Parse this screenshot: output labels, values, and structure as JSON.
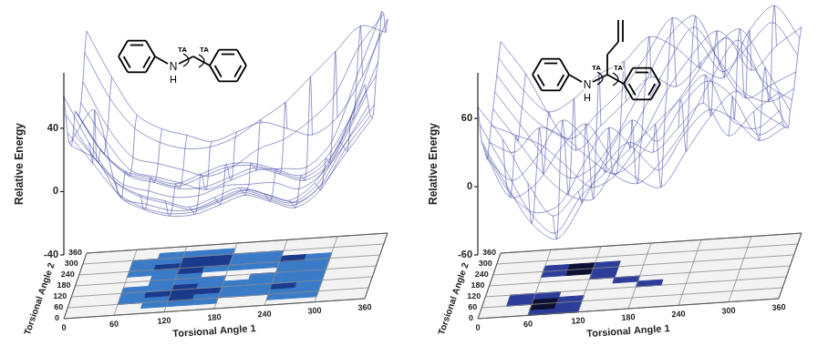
{
  "chart_data": [
    {
      "type": "surface",
      "x_label": "Torsional Angle 1",
      "y_label": "Torsional Angle 2",
      "z_label": "Relative Energy",
      "annotations": [
        "N",
        "H",
        "TA",
        "TA"
      ],
      "x": [
        0,
        30,
        60,
        90,
        120,
        150,
        180,
        210,
        240,
        270,
        300,
        330,
        360
      ],
      "y": [
        0,
        30,
        60,
        90,
        120,
        150,
        180,
        210,
        240,
        270,
        300,
        330,
        360
      ],
      "z": [
        [
          60,
          30,
          5,
          -5,
          -10,
          -15,
          -10,
          -5,
          -10,
          -15,
          -5,
          20,
          55
        ],
        [
          45,
          20,
          0,
          -10,
          -15,
          -20,
          -15,
          -10,
          -15,
          -20,
          -10,
          15,
          45
        ],
        [
          30,
          10,
          -10,
          -20,
          -25,
          -25,
          -20,
          -15,
          -20,
          -25,
          -15,
          10,
          35
        ],
        [
          20,
          40,
          -15,
          -25,
          -30,
          -30,
          -25,
          -20,
          -25,
          -30,
          -20,
          5,
          25
        ],
        [
          15,
          5,
          -20,
          -25,
          -30,
          -30,
          -25,
          -20,
          -25,
          -30,
          -20,
          0,
          20
        ],
        [
          20,
          0,
          -15,
          -20,
          -25,
          -25,
          -20,
          -20,
          -20,
          -25,
          -15,
          5,
          25
        ],
        [
          30,
          5,
          -10,
          -15,
          -20,
          -15,
          -10,
          -10,
          -15,
          -20,
          -10,
          15,
          40
        ],
        [
          25,
          0,
          -15,
          -20,
          -25,
          -20,
          -15,
          -15,
          -20,
          -25,
          -15,
          10,
          45
        ],
        [
          20,
          -5,
          -20,
          -25,
          -30,
          -30,
          -25,
          -20,
          -25,
          -30,
          -20,
          15,
          60
        ],
        [
          25,
          0,
          -20,
          -25,
          -30,
          -35,
          -30,
          -25,
          -25,
          -25,
          -10,
          30,
          70
        ],
        [
          35,
          5,
          -15,
          -20,
          -25,
          -30,
          -25,
          -15,
          -10,
          0,
          15,
          45,
          65
        ],
        [
          50,
          20,
          0,
          -10,
          -15,
          -15,
          -10,
          0,
          10,
          25,
          40,
          55,
          50
        ],
        [
          60,
          30,
          5,
          -5,
          -10,
          -15,
          -10,
          -5,
          -10,
          -15,
          -5,
          20,
          55
        ]
      ],
      "xlim": [
        0,
        360
      ],
      "xticks": [
        0,
        60,
        120,
        180,
        240,
        300,
        360
      ],
      "ylim": [
        0,
        360
      ],
      "yticks": [
        0,
        60,
        120,
        180,
        240,
        300,
        360
      ],
      "zlim": [
        -40,
        75
      ],
      "zticks": [
        -40,
        0,
        40
      ],
      "grid": true,
      "color": "#3a3f9e",
      "contour": {
        "levels": [
          -25,
          -15
        ],
        "colors": [
          "#1b3a8c",
          "#3a7bc8"
        ]
      }
    },
    {
      "type": "surface",
      "x_label": "Torsional Angle 1",
      "y_label": "Torsional Angle 2",
      "z_label": "Relative Energy",
      "annotations": [
        "N",
        "H",
        "TA",
        "TA"
      ],
      "x": [
        0,
        30,
        60,
        90,
        120,
        150,
        180,
        210,
        240,
        270,
        300,
        330,
        360
      ],
      "y": [
        0,
        30,
        60,
        90,
        120,
        150,
        180,
        210,
        240,
        270,
        300,
        330,
        360
      ],
      "z": [
        [
          70,
          40,
          0,
          -30,
          -10,
          10,
          30,
          20,
          40,
          60,
          30,
          50,
          65
        ],
        [
          50,
          10,
          -30,
          -50,
          -20,
          0,
          20,
          40,
          60,
          80,
          40,
          30,
          45
        ],
        [
          30,
          -10,
          -45,
          -60,
          -30,
          10,
          40,
          20,
          50,
          70,
          55,
          20,
          30
        ],
        [
          20,
          -20,
          -40,
          -35,
          0,
          30,
          10,
          -10,
          20,
          40,
          30,
          10,
          20
        ],
        [
          10,
          -30,
          -20,
          10,
          30,
          0,
          -20,
          -30,
          0,
          30,
          50,
          30,
          15
        ],
        [
          0,
          -20,
          0,
          30,
          10,
          -20,
          -30,
          -10,
          20,
          60,
          90,
          50,
          10
        ],
        [
          10,
          0,
          20,
          10,
          -10,
          -25,
          -10,
          20,
          50,
          80,
          95,
          60,
          20
        ],
        [
          20,
          10,
          0,
          -20,
          -40,
          -30,
          0,
          40,
          70,
          90,
          70,
          40,
          25
        ],
        [
          30,
          0,
          -30,
          -50,
          -55,
          -20,
          20,
          60,
          90,
          60,
          30,
          20,
          30
        ],
        [
          40,
          10,
          -20,
          -40,
          -30,
          0,
          40,
          80,
          95,
          50,
          20,
          30,
          40
        ],
        [
          50,
          20,
          0,
          -10,
          10,
          30,
          60,
          90,
          70,
          40,
          60,
          80,
          50
        ],
        [
          60,
          30,
          10,
          20,
          40,
          50,
          70,
          60,
          40,
          30,
          70,
          90,
          60
        ],
        [
          70,
          40,
          0,
          -30,
          -10,
          10,
          30,
          20,
          40,
          60,
          30,
          50,
          65
        ]
      ],
      "xlim": [
        0,
        360
      ],
      "xticks": [
        0,
        60,
        120,
        180,
        240,
        300,
        360
      ],
      "ylim": [
        0,
        360
      ],
      "yticks": [
        0,
        60,
        120,
        180,
        240,
        300,
        360
      ],
      "zlim": [
        -60,
        100
      ],
      "zticks": [
        -60,
        0,
        60
      ],
      "grid": true,
      "color": "#3a3f9e",
      "contour": {
        "levels": [
          -40,
          -20
        ],
        "colors": [
          "#0d1030",
          "#2c3d99"
        ]
      }
    }
  ]
}
